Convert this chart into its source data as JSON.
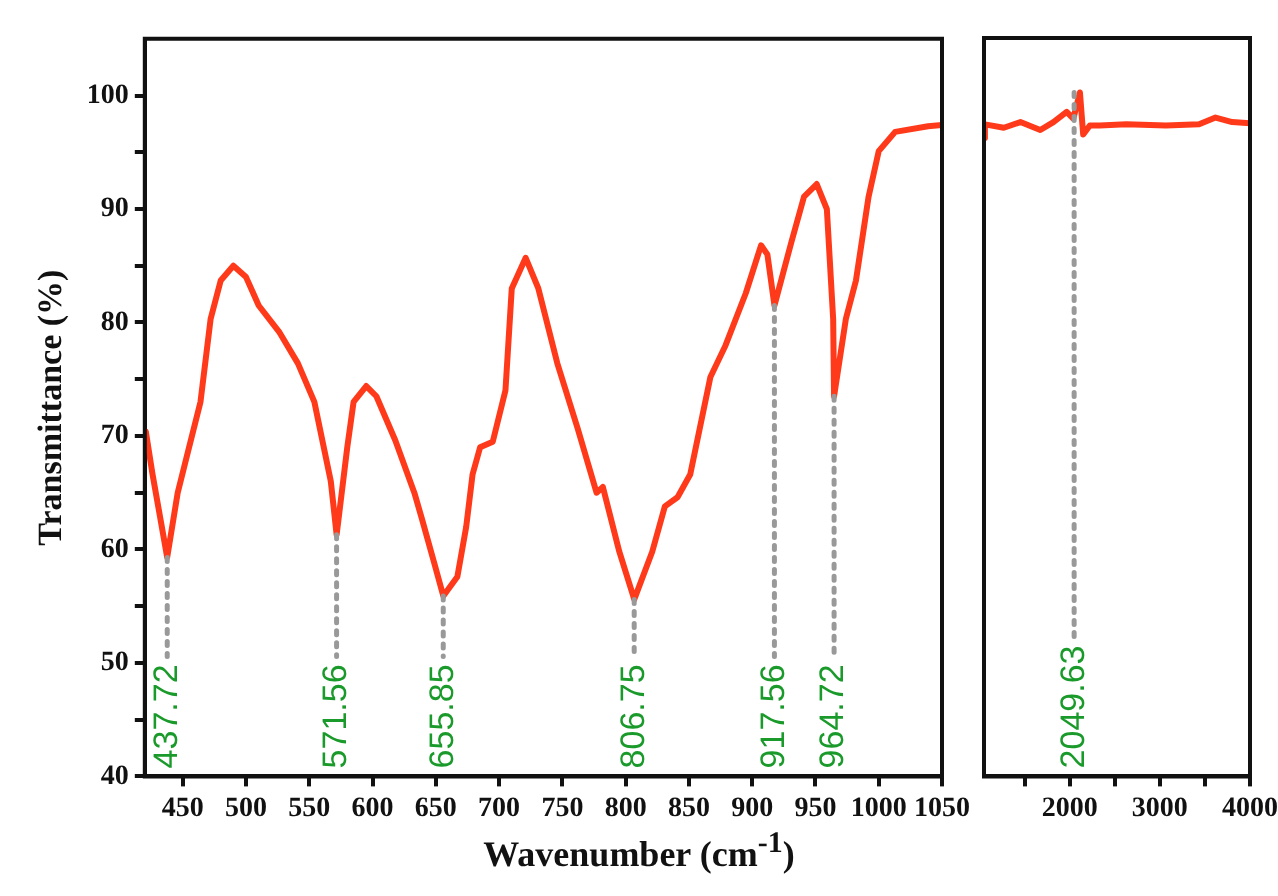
{
  "chart_data": [
    {
      "type": "line",
      "xlabel": "Wavenumber (cm$^{-1}$)",
      "ylabel": "Transmittance (%)",
      "xlim": [
        420,
        1050
      ],
      "xticks": [
        450,
        500,
        550,
        600,
        650,
        700,
        750,
        800,
        850,
        900,
        950,
        1000,
        1050
      ],
      "ylim": [
        40,
        105
      ],
      "yticks": [
        40,
        {
          "value": 45,
          "label": null
        },
        50,
        {
          "value": 55,
          "label": null
        },
        60,
        {
          "value": 65,
          "label": null
        },
        70,
        {
          "value": 75,
          "label": null
        },
        80,
        {
          "value": 85,
          "label": null
        },
        90,
        {
          "value": 95,
          "label": null
        },
        100
      ],
      "series": [
        {
          "color": "#ff3a1a",
          "x": [
            420.8,
            426,
            437.7,
            446,
            455,
            464,
            472,
            480,
            490,
            500,
            510,
            526,
            541,
            554,
            567,
            571.6,
            580,
            585,
            595,
            603,
            618,
            633,
            639,
            649,
            655.9,
            667,
            674,
            679,
            685,
            695,
            705,
            710,
            721,
            731,
            746,
            762,
            777,
            782,
            795,
            806.8,
            821,
            831,
            841,
            851,
            867,
            879,
            895,
            907,
            912,
            917.6,
            931,
            941,
            951,
            959,
            964,
            964.7,
            974,
            982,
            992,
            1000,
            1013,
            1039,
            1050
          ],
          "values": [
            70.4,
            66.7,
            59.3,
            65,
            69,
            73,
            80.3,
            83.7,
            85,
            84,
            81.5,
            79.2,
            76.4,
            73,
            66,
            61.3,
            69,
            73,
            74.4,
            73.5,
            69.6,
            65,
            62.7,
            58.7,
            55.9,
            57.6,
            62,
            66.6,
            69,
            69.5,
            74,
            83,
            85.7,
            83,
            76.4,
            70.7,
            65,
            65.5,
            59.8,
            55.6,
            59.8,
            63.8,
            64.6,
            66.6,
            75.2,
            78,
            82.6,
            86.8,
            86,
            81.5,
            87.1,
            91.1,
            92.2,
            90,
            80.3,
            73.5,
            80.3,
            83.7,
            91.1,
            95.1,
            96.8,
            97.3,
            97.4
          ]
        }
      ],
      "annotations": [
        {
          "text": "437.72",
          "x": 437.72,
          "y": 59.3
        },
        {
          "text": "571.56",
          "x": 571.56,
          "y": 61.3
        },
        {
          "text": "655.85",
          "x": 655.85,
          "y": 55.9
        },
        {
          "text": "806.75",
          "x": 806.75,
          "y": 55.6
        },
        {
          "text": "917.56",
          "x": 917.56,
          "y": 81.5
        },
        {
          "text": "964.72",
          "x": 964.72,
          "y": 73.5
        }
      ]
    },
    {
      "type": "line",
      "xlim": [
        1050,
        4000
      ],
      "xticks": [
        {
          "value": 1500,
          "label": null
        },
        2000,
        {
          "value": 2500,
          "label": null
        },
        3000,
        {
          "value": 3500,
          "label": null
        },
        4000
      ],
      "ylim": [
        40,
        105
      ],
      "tick_labels": "x",
      "series": [
        {
          "color": "#ff3a1a",
          "x": [
            1050,
            1060,
            1270,
            1454,
            1674,
            1820,
            1967,
            2040,
            2114,
            2150,
            2224,
            2334,
            2628,
            3068,
            3435,
            3618,
            3802,
            4000
          ],
          "values": [
            96.2,
            97.4,
            97.1,
            97.6,
            96.9,
            97.6,
            98.5,
            97.9,
            100.2,
            96.5,
            97.3,
            97.3,
            97.4,
            97.3,
            97.4,
            98,
            97.6,
            97.5
          ]
        }
      ],
      "annotations": [
        {
          "text": "2049.63",
          "x": 2049.63,
          "y": 100.2
        }
      ]
    }
  ]
}
